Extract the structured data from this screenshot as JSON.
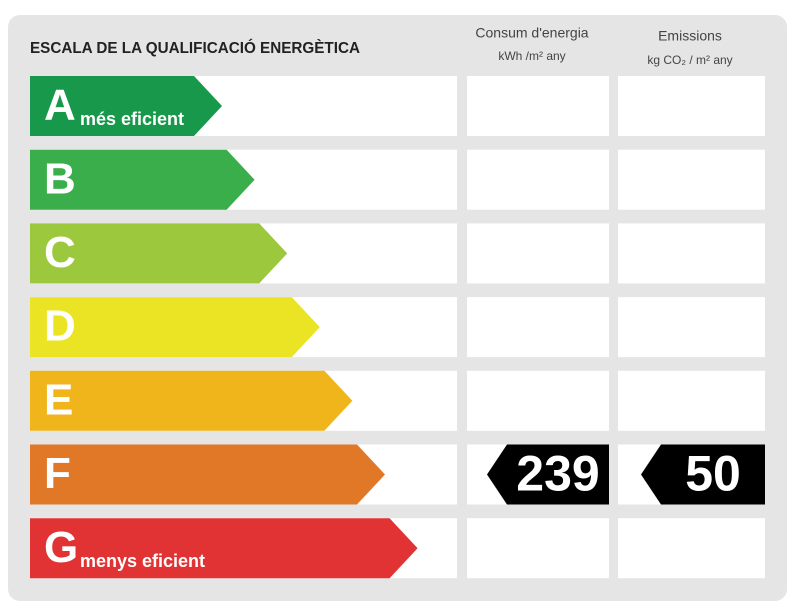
{
  "title": "ESCALA DE LA QUALIFICACIÓ ENERGÈTICA",
  "columns": [
    {
      "title": "Consum d'energia",
      "unit": "kWh /m² any"
    },
    {
      "title": "Emissions",
      "unit": "kg CO₂ / m² any"
    }
  ],
  "rows": [
    {
      "letter": "A",
      "label": "més eficient",
      "color": "#17984a"
    },
    {
      "letter": "B",
      "color": "#3aae4a"
    },
    {
      "letter": "C",
      "color": "#9cc83e"
    },
    {
      "letter": "D",
      "color": "#ebe424"
    },
    {
      "letter": "E",
      "color": "#f1b51c"
    },
    {
      "letter": "F",
      "color": "#e07828",
      "consumption": 239,
      "emissions": 50
    },
    {
      "letter": "G",
      "label": "menys eficient",
      "color": "#e13333"
    }
  ]
}
